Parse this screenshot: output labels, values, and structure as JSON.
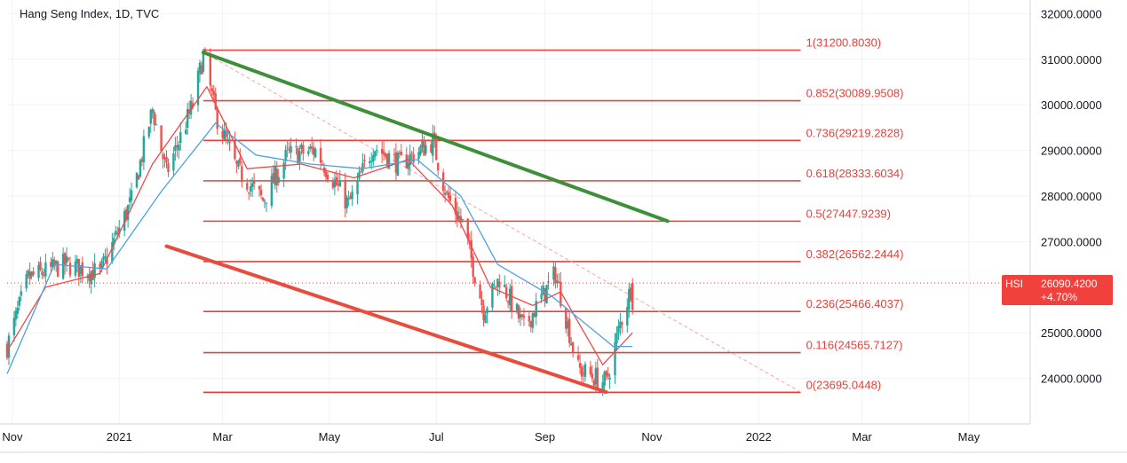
{
  "chart_data": {
    "type": "candlestick",
    "title": "Hang Seng Index, 1D, TVC",
    "ylim": [
      23000,
      32300
    ],
    "y_ticks": [
      24000,
      25000,
      26000,
      27000,
      28000,
      29000,
      30000,
      31000,
      32000
    ],
    "y_tick_labels": [
      "24000.0000",
      "25000.0000",
      "26000.0000",
      "27000.0000",
      "28000.0000",
      "29000.0000",
      "30000.0000",
      "31000.0000",
      "32000.0000"
    ],
    "x_ticks": [
      "2020-11-01",
      "2021-01-01",
      "2021-03-01",
      "2021-05-01",
      "2021-07-01",
      "2021-09-01",
      "2021-11-01",
      "2022-01-01",
      "2022-03-01",
      "2022-05-01"
    ],
    "x_tick_labels": [
      "Nov",
      "2021",
      "Mar",
      "May",
      "Jul",
      "Sep",
      "Nov",
      "2022",
      "Mar",
      "May"
    ],
    "xlim": [
      "2020-10-29",
      "2022-06-05"
    ],
    "grid": true,
    "price_keypoints": [
      {
        "date": "2020-10-29",
        "value": 24700
      },
      {
        "date": "2020-11-10",
        "value": 26200
      },
      {
        "date": "2020-12-01",
        "value": 26500
      },
      {
        "date": "2020-12-21",
        "value": 26300
      },
      {
        "date": "2021-01-08",
        "value": 27900
      },
      {
        "date": "2021-01-20",
        "value": 29900
      },
      {
        "date": "2021-01-28",
        "value": 28500
      },
      {
        "date": "2021-02-12",
        "value": 30000
      },
      {
        "date": "2021-02-18",
        "value": 31100
      },
      {
        "date": "2021-02-25",
        "value": 29800
      },
      {
        "date": "2021-03-09",
        "value": 28600
      },
      {
        "date": "2021-03-24",
        "value": 27900
      },
      {
        "date": "2021-04-07",
        "value": 28900
      },
      {
        "date": "2021-04-23",
        "value": 29000
      },
      {
        "date": "2021-05-12",
        "value": 27800
      },
      {
        "date": "2021-05-26",
        "value": 29100
      },
      {
        "date": "2021-06-10",
        "value": 28700
      },
      {
        "date": "2021-06-29",
        "value": 29200
      },
      {
        "date": "2021-07-07",
        "value": 28000
      },
      {
        "date": "2021-07-16",
        "value": 27400
      },
      {
        "date": "2021-07-28",
        "value": 25500
      },
      {
        "date": "2021-08-06",
        "value": 26200
      },
      {
        "date": "2021-08-20",
        "value": 25100
      },
      {
        "date": "2021-09-07",
        "value": 26300
      },
      {
        "date": "2021-09-20",
        "value": 24200
      },
      {
        "date": "2021-10-06",
        "value": 23900
      },
      {
        "date": "2021-10-14",
        "value": 25200
      },
      {
        "date": "2021-10-21",
        "value": 26090.42
      }
    ],
    "moving_averages": [
      {
        "name": "fast",
        "color": "#f04848",
        "values": [
          {
            "date": "2020-10-29",
            "value": 24600
          },
          {
            "date": "2020-11-20",
            "value": 26000
          },
          {
            "date": "2020-12-21",
            "value": 26300
          },
          {
            "date": "2021-01-20",
            "value": 28700
          },
          {
            "date": "2021-02-20",
            "value": 30400
          },
          {
            "date": "2021-03-15",
            "value": 28600
          },
          {
            "date": "2021-04-15",
            "value": 28700
          },
          {
            "date": "2021-05-15",
            "value": 28400
          },
          {
            "date": "2021-06-15",
            "value": 28800
          },
          {
            "date": "2021-07-10",
            "value": 27800
          },
          {
            "date": "2021-08-01",
            "value": 26000
          },
          {
            "date": "2021-08-25",
            "value": 25600
          },
          {
            "date": "2021-09-10",
            "value": 25900
          },
          {
            "date": "2021-10-04",
            "value": 24300
          },
          {
            "date": "2021-10-21",
            "value": 25000
          }
        ]
      },
      {
        "name": "slow",
        "color": "#4aa3e0",
        "values": [
          {
            "date": "2020-10-29",
            "value": 24100
          },
          {
            "date": "2020-11-25",
            "value": 26500
          },
          {
            "date": "2020-12-25",
            "value": 26400
          },
          {
            "date": "2021-01-25",
            "value": 28100
          },
          {
            "date": "2021-02-25",
            "value": 29600
          },
          {
            "date": "2021-03-20",
            "value": 28900
          },
          {
            "date": "2021-04-20",
            "value": 28700
          },
          {
            "date": "2021-05-20",
            "value": 28600
          },
          {
            "date": "2021-06-20",
            "value": 28800
          },
          {
            "date": "2021-07-15",
            "value": 28000
          },
          {
            "date": "2021-08-05",
            "value": 26500
          },
          {
            "date": "2021-09-05",
            "value": 25800
          },
          {
            "date": "2021-10-10",
            "value": 24700
          },
          {
            "date": "2021-10-21",
            "value": 24700
          }
        ]
      }
    ],
    "fib_levels": [
      {
        "label": "1(31200.8030)",
        "value": 31200.803
      },
      {
        "label": "0.852(30089.9508)",
        "value": 30089.9508
      },
      {
        "label": "0.736(29219.2828)",
        "value": 29219.2828
      },
      {
        "label": "0.618(28333.6034)",
        "value": 28333.6034
      },
      {
        "label": "0.5(27447.9239)",
        "value": 27447.9239
      },
      {
        "label": "0.382(26562.2444)",
        "value": 26562.2444
      },
      {
        "label": "0.236(25466.4037)",
        "value": 25466.4037
      },
      {
        "label": "0.116(24565.7127)",
        "value": 24565.7127
      },
      {
        "label": "0(23695.0448)",
        "value": 23695.0448
      }
    ],
    "fib_range": [
      "2021-02-18",
      "2022-01-25"
    ],
    "trendlines": [
      {
        "name": "upper",
        "color": "#3d8f3a",
        "from": {
          "date": "2021-02-18",
          "value": 31150
        },
        "to": {
          "date": "2021-11-10",
          "value": 27450
        }
      },
      {
        "name": "lower",
        "color": "#e84c3d",
        "from": {
          "date": "2021-01-28",
          "value": 26900
        },
        "to": {
          "date": "2021-10-06",
          "value": 23700
        }
      },
      {
        "name": "projection",
        "color": "#f4a6a0",
        "from": {
          "date": "2021-02-18",
          "value": 31150
        },
        "to": {
          "date": "2022-01-25",
          "value": 23700
        }
      }
    ],
    "last_price": {
      "symbol": "HSI",
      "value": "26090.4200",
      "change": "+4.70%",
      "y": 26090.42
    }
  },
  "colors": {
    "up": "#26a69a",
    "down": "#ef5350",
    "fib": "#e8403a",
    "grid": "#f0f2f5",
    "axis_text": "#131722",
    "tag_bg": "#f0413d"
  }
}
